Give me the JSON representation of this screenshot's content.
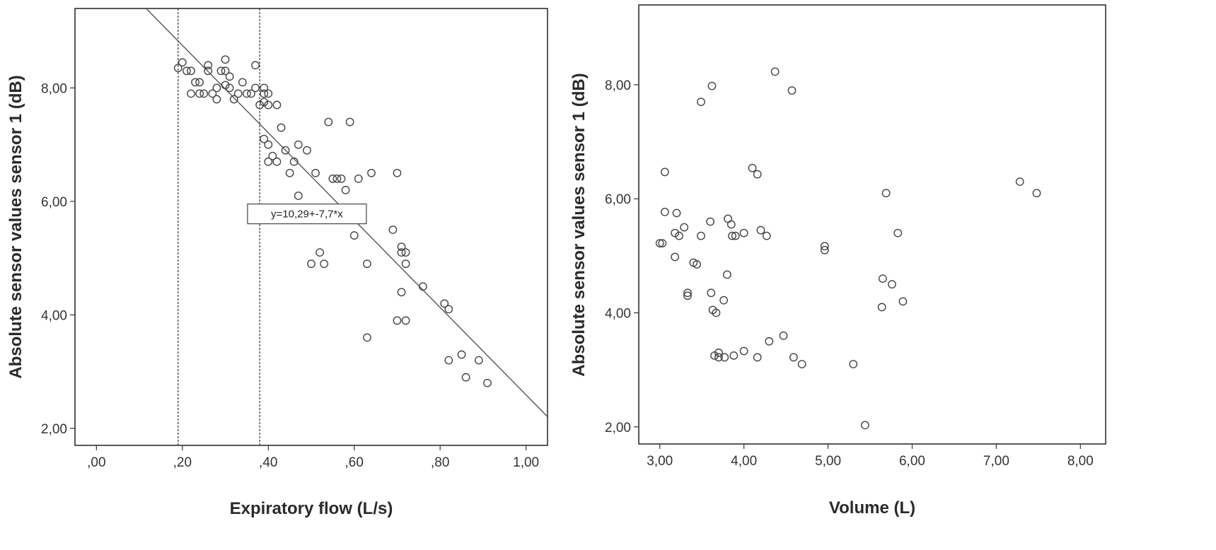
{
  "chart_data": [
    {
      "type": "scatter",
      "title": "",
      "xlabel": "Expiratory flow (L/s)",
      "ylabel": "Absolute sensor values sensor 1 (dB)",
      "xlim": [
        -0.05,
        1.05
      ],
      "ylim": [
        1.7,
        9.4
      ],
      "xticks": [
        0.0,
        0.2,
        0.4,
        0.6,
        0.8,
        1.0
      ],
      "xtick_labels": [
        ",00",
        ",20",
        ",40",
        ",60",
        ",80",
        "1,00"
      ],
      "yticks": [
        2,
        4,
        6,
        8
      ],
      "ytick_labels": [
        "2,00",
        "4,00",
        "6,00",
        "8,00"
      ],
      "grid": false,
      "fit_line": {
        "intercept": 10.29,
        "slope": -7.7,
        "label": "y=10,29+-7,7*x",
        "label_at": [
          0.49,
          5.78
        ]
      },
      "vlines": [
        0.19,
        0.38
      ],
      "points": [
        [
          0.19,
          8.35
        ],
        [
          0.2,
          8.45
        ],
        [
          0.21,
          8.3
        ],
        [
          0.22,
          8.3
        ],
        [
          0.22,
          7.9
        ],
        [
          0.23,
          8.1
        ],
        [
          0.24,
          7.9
        ],
        [
          0.24,
          8.1
        ],
        [
          0.25,
          7.9
        ],
        [
          0.26,
          8.4
        ],
        [
          0.26,
          8.3
        ],
        [
          0.27,
          7.9
        ],
        [
          0.28,
          8.0
        ],
        [
          0.28,
          7.8
        ],
        [
          0.29,
          8.3
        ],
        [
          0.3,
          8.05
        ],
        [
          0.3,
          8.5
        ],
        [
          0.3,
          8.3
        ],
        [
          0.31,
          8.2
        ],
        [
          0.31,
          8.0
        ],
        [
          0.32,
          7.8
        ],
        [
          0.33,
          7.9
        ],
        [
          0.34,
          8.1
        ],
        [
          0.35,
          7.9
        ],
        [
          0.36,
          7.9
        ],
        [
          0.37,
          8.4
        ],
        [
          0.37,
          8.0
        ],
        [
          0.38,
          7.7
        ],
        [
          0.39,
          7.9
        ],
        [
          0.39,
          8.0
        ],
        [
          0.39,
          7.75
        ],
        [
          0.4,
          7.9
        ],
        [
          0.4,
          7.7
        ],
        [
          0.39,
          7.1
        ],
        [
          0.4,
          7.0
        ],
        [
          0.4,
          6.7
        ],
        [
          0.41,
          6.8
        ],
        [
          0.42,
          7.7
        ],
        [
          0.42,
          6.7
        ],
        [
          0.43,
          7.3
        ],
        [
          0.44,
          6.9
        ],
        [
          0.45,
          6.5
        ],
        [
          0.46,
          6.7
        ],
        [
          0.47,
          7.0
        ],
        [
          0.47,
          6.1
        ],
        [
          0.49,
          6.9
        ],
        [
          0.5,
          4.9
        ],
        [
          0.51,
          6.5
        ],
        [
          0.52,
          5.1
        ],
        [
          0.53,
          4.9
        ],
        [
          0.54,
          7.4
        ],
        [
          0.55,
          6.4
        ],
        [
          0.56,
          6.4
        ],
        [
          0.57,
          6.4
        ],
        [
          0.58,
          6.2
        ],
        [
          0.59,
          7.4
        ],
        [
          0.6,
          5.4
        ],
        [
          0.61,
          6.4
        ],
        [
          0.63,
          4.9
        ],
        [
          0.63,
          3.6
        ],
        [
          0.64,
          6.5
        ],
        [
          0.69,
          5.5
        ],
        [
          0.7,
          6.5
        ],
        [
          0.7,
          3.9
        ],
        [
          0.71,
          5.1
        ],
        [
          0.71,
          5.2
        ],
        [
          0.71,
          4.4
        ],
        [
          0.72,
          5.1
        ],
        [
          0.72,
          4.9
        ],
        [
          0.72,
          3.9
        ],
        [
          0.76,
          4.5
        ],
        [
          0.81,
          4.2
        ],
        [
          0.82,
          4.1
        ],
        [
          0.82,
          3.2
        ],
        [
          0.85,
          3.3
        ],
        [
          0.86,
          2.9
        ],
        [
          0.89,
          3.2
        ],
        [
          0.91,
          2.8
        ]
      ]
    },
    {
      "type": "scatter",
      "title": "",
      "xlabel": "Volume (L)",
      "ylabel": "Absolute sensor values sensor 1 (dB)",
      "xlim": [
        2.75,
        8.3
      ],
      "ylim": [
        1.7,
        9.4
      ],
      "xticks": [
        3,
        4,
        5,
        6,
        7,
        8
      ],
      "xtick_labels": [
        "3,00",
        "4,00",
        "5,00",
        "6,00",
        "7,00",
        "8,00"
      ],
      "yticks": [
        2,
        4,
        6,
        8
      ],
      "ytick_labels": [
        "2,00",
        "4,00",
        "6,00",
        "8,00"
      ],
      "grid": false,
      "points": [
        [
          3.0,
          5.22
        ],
        [
          3.03,
          5.22
        ],
        [
          3.06,
          6.47
        ],
        [
          3.06,
          5.77
        ],
        [
          3.18,
          5.4
        ],
        [
          3.18,
          4.98
        ],
        [
          3.2,
          5.75
        ],
        [
          3.23,
          5.35
        ],
        [
          3.29,
          5.5
        ],
        [
          3.33,
          4.35
        ],
        [
          3.33,
          4.3
        ],
        [
          3.4,
          4.88
        ],
        [
          3.44,
          4.85
        ],
        [
          3.49,
          5.35
        ],
        [
          3.49,
          7.7
        ],
        [
          3.6,
          5.6
        ],
        [
          3.61,
          4.35
        ],
        [
          3.62,
          7.98
        ],
        [
          3.63,
          4.05
        ],
        [
          3.65,
          3.25
        ],
        [
          3.67,
          4.0
        ],
        [
          3.7,
          3.3
        ],
        [
          3.7,
          3.22
        ],
        [
          3.76,
          4.22
        ],
        [
          3.77,
          3.22
        ],
        [
          3.8,
          4.67
        ],
        [
          3.81,
          5.65
        ],
        [
          3.85,
          5.55
        ],
        [
          3.86,
          5.35
        ],
        [
          3.88,
          3.25
        ],
        [
          3.9,
          5.35
        ],
        [
          4.0,
          5.4
        ],
        [
          4.0,
          3.33
        ],
        [
          4.1,
          6.54
        ],
        [
          4.16,
          6.43
        ],
        [
          4.16,
          3.22
        ],
        [
          4.2,
          5.45
        ],
        [
          4.27,
          5.35
        ],
        [
          4.3,
          3.5
        ],
        [
          4.37,
          8.23
        ],
        [
          4.47,
          3.6
        ],
        [
          4.57,
          7.9
        ],
        [
          4.59,
          3.22
        ],
        [
          4.69,
          3.1
        ],
        [
          4.96,
          5.17
        ],
        [
          4.96,
          5.1
        ],
        [
          5.3,
          3.1
        ],
        [
          5.44,
          2.03
        ],
        [
          5.64,
          4.1
        ],
        [
          5.65,
          4.6
        ],
        [
          5.69,
          6.1
        ],
        [
          5.76,
          4.5
        ],
        [
          5.83,
          5.4
        ],
        [
          5.89,
          4.2
        ],
        [
          7.28,
          6.3
        ],
        [
          7.48,
          6.1
        ]
      ]
    }
  ]
}
